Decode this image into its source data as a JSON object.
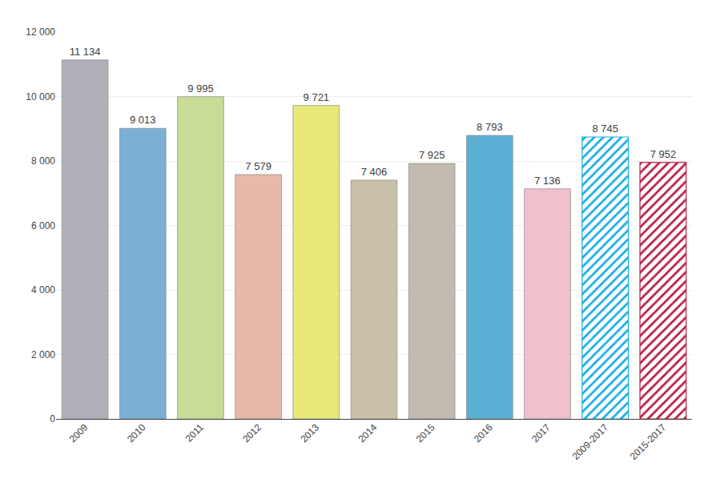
{
  "chart_data": {
    "type": "bar",
    "categories": [
      "2009",
      "2010",
      "2011",
      "2012",
      "2013",
      "2014",
      "2015",
      "2016",
      "2017",
      "2009-2017",
      "2015-2017"
    ],
    "series": [
      {
        "values": [
          11134,
          9013,
          9995,
          7579,
          9721,
          7406,
          7925,
          8793,
          7136,
          null,
          null
        ],
        "value_labels": [
          "11 134",
          "9 013",
          "9 995",
          "7 579",
          "9 721",
          "7 406",
          "7 925",
          "8 793",
          "7 136",
          null,
          null
        ],
        "colors": [
          "#b0b0b8",
          "#7bafd4",
          "#c8dc98",
          "#e8b8a8",
          "#e8e878",
          "#c8c0a8",
          "#c0bab0",
          "#5bafd4",
          "#f0c0cc",
          null,
          null
        ]
      },
      {
        "values": [
          null,
          null,
          null,
          null,
          null,
          null,
          null,
          null,
          null,
          8745,
          7952
        ],
        "value_labels": [
          null,
          null,
          null,
          null,
          null,
          null,
          null,
          null,
          null,
          "8 745",
          "7 952"
        ],
        "colors": [
          null,
          null,
          null,
          null,
          null,
          null,
          null,
          null,
          null,
          "#1aade4",
          "#b82044"
        ],
        "marker": "hatch"
      }
    ],
    "ylim": [
      0,
      12000
    ],
    "yticks": [
      0,
      {
        "value": 2000,
        "label": "2 000"
      },
      {
        "value": 4000,
        "label": "4 000"
      },
      {
        "value": 6000,
        "label": "6 000"
      },
      {
        "value": 8000,
        "label": "8 000"
      },
      {
        "value": 10000,
        "label": "10 000"
      },
      {
        "value": 12000,
        "label": "12 000"
      }
    ],
    "grid": true,
    "data_labels": true
  }
}
